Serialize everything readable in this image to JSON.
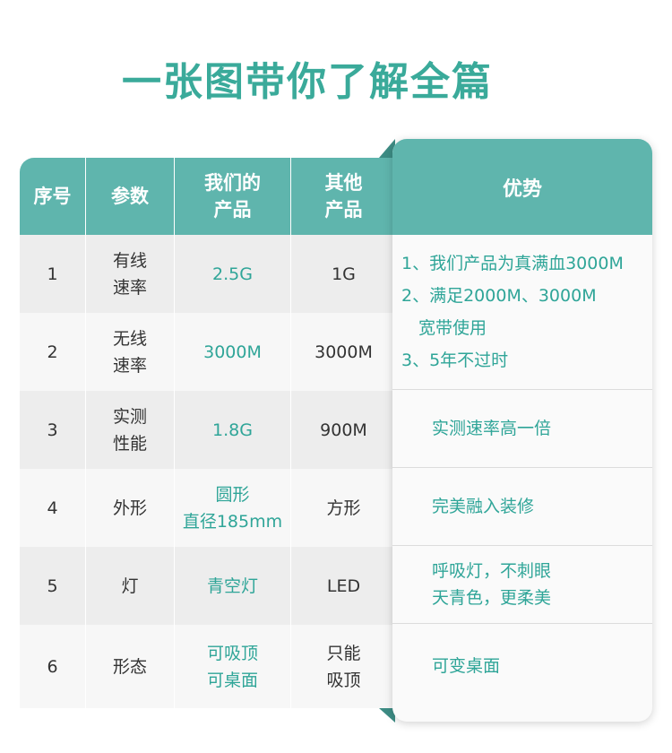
{
  "title": "一张图带你了解全篇",
  "headers": {
    "seq": "序号",
    "param": "参数",
    "ours": "我们的\n产品",
    "others": "其他\n产品",
    "advantage": "优势"
  },
  "rows": [
    {
      "seq": "1",
      "param": "有线\n速率",
      "ours": "2.5G",
      "others": "1G"
    },
    {
      "seq": "2",
      "param": "无线\n速率",
      "ours": "3000M",
      "others": "3000M"
    },
    {
      "seq": "3",
      "param": "实测\n性能",
      "ours": "1.8G",
      "others": "900M"
    },
    {
      "seq": "4",
      "param": "外形",
      "ours": "圆形\n直径185mm",
      "others": "方形"
    },
    {
      "seq": "5",
      "param": "灯",
      "ours": "青空灯",
      "others": "LED"
    },
    {
      "seq": "6",
      "param": "形态",
      "ours": "可吸顶\n可桌面",
      "others": "只能\n吸顶"
    }
  ],
  "advantages": [
    {
      "lines": [
        "1、我们产品为真满血3000M",
        "2、满足2000M、3000M",
        "　宽带使用",
        "3、5年不过时"
      ]
    },
    {
      "lines": [
        "实测速率高一倍"
      ]
    },
    {
      "lines": [
        "完美融入装修"
      ]
    },
    {
      "lines": [
        "呼吸灯，不刺眼",
        "天青色，更柔美"
      ]
    },
    {
      "lines": [
        "可变桌面"
      ]
    }
  ],
  "colors": {
    "accent": "#5fb5ad",
    "accent_text": "#2fa598",
    "title": "#3aaa9a",
    "row_odd": "#ededed",
    "row_even": "#f7f7f7"
  }
}
